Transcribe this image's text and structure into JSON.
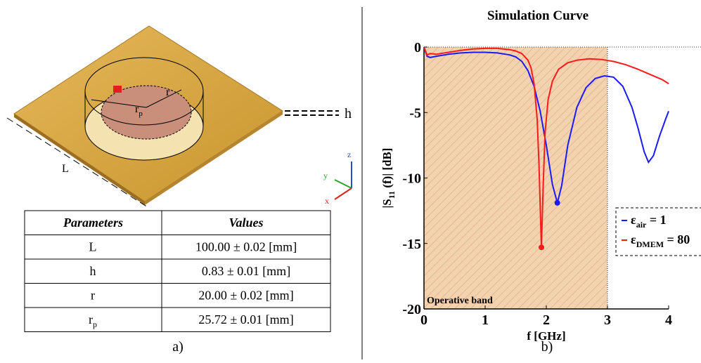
{
  "chart_data": {
    "type": "line",
    "title": "Simulation Curve",
    "x_label": "f [GHz]",
    "y_label": [
      "|S",
      "11",
      " (f)| [dB]"
    ],
    "xlim": [
      0,
      4
    ],
    "ylim": [
      -20,
      0
    ],
    "xticks": [
      0,
      1,
      2,
      3,
      4
    ],
    "yticks": [
      0,
      -5,
      -10,
      -15,
      -20
    ],
    "band": [
      0,
      3
    ],
    "band_label": "Operative band",
    "band_color": "#f3d2b0",
    "series": [
      {
        "name": [
          "ε",
          "air",
          " = 1"
        ],
        "color": "#1a1aff",
        "x": [
          0,
          0.05,
          0.1,
          0.2,
          0.4,
          0.6,
          0.8,
          1.0,
          1.2,
          1.4,
          1.5,
          1.6,
          1.7,
          1.8,
          1.9,
          2.0,
          2.1,
          2.18,
          2.25,
          2.35,
          2.5,
          2.65,
          2.8,
          2.95,
          3.1,
          3.25,
          3.4,
          3.5,
          3.6,
          3.67,
          3.75,
          3.85,
          3.95,
          4.0
        ],
        "values": [
          0,
          -0.7,
          -0.8,
          -0.7,
          -0.55,
          -0.45,
          -0.4,
          -0.4,
          -0.45,
          -0.6,
          -0.75,
          -1.1,
          -1.8,
          -3.0,
          -4.9,
          -7.5,
          -10.5,
          -11.9,
          -10.6,
          -7.5,
          -4.6,
          -3.1,
          -2.4,
          -2.2,
          -2.3,
          -3.0,
          -4.6,
          -6.2,
          -8.0,
          -8.8,
          -8.3,
          -6.8,
          -5.5,
          -4.9
        ]
      },
      {
        "name": [
          "ε",
          "DMEM",
          " = 80"
        ],
        "color": "#ff1a1a",
        "x": [
          0,
          0.05,
          0.1,
          0.2,
          0.4,
          0.6,
          0.8,
          1.0,
          1.2,
          1.4,
          1.5,
          1.6,
          1.7,
          1.75,
          1.8,
          1.85,
          1.88,
          1.92,
          1.95,
          1.98,
          2.03,
          2.1,
          2.2,
          2.35,
          2.5,
          2.7,
          2.9,
          3.1,
          3.3,
          3.5,
          3.7,
          3.9,
          4.0
        ],
        "values": [
          0,
          -0.6,
          -0.5,
          -0.55,
          -0.4,
          -0.25,
          -0.15,
          -0.1,
          -0.1,
          -0.2,
          -0.3,
          -0.5,
          -1.0,
          -1.6,
          -2.8,
          -5.5,
          -9.0,
          -15.3,
          -10.5,
          -6.5,
          -4.0,
          -2.6,
          -1.7,
          -1.2,
          -1.0,
          -0.9,
          -0.95,
          -1.1,
          -1.35,
          -1.7,
          -2.1,
          -2.5,
          -2.8
        ]
      }
    ]
  },
  "diagram": {
    "L": "L",
    "h": "h",
    "r": "r",
    "rp": [
      "r",
      "p"
    ],
    "x": "x",
    "y": "y",
    "z": "z"
  },
  "table": {
    "header": [
      "Parameters",
      "Values"
    ],
    "rows": [
      [
        [
          "L",
          ""
        ],
        "100.00 ± 0.02 [mm]"
      ],
      [
        [
          "h",
          ""
        ],
        "0.83 ± 0.01 [mm]"
      ],
      [
        [
          "r",
          ""
        ],
        "20.00 ± 0.02 [mm]"
      ],
      [
        [
          "r",
          "p"
        ],
        "25.72 ± 0.01 [mm]"
      ]
    ]
  },
  "captions": [
    "a)",
    "b)"
  ]
}
